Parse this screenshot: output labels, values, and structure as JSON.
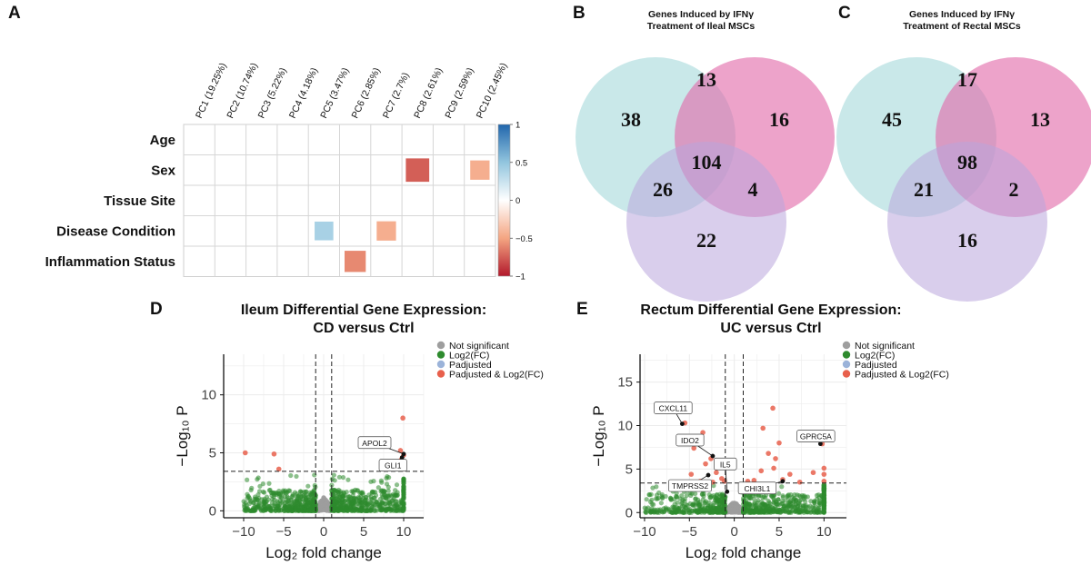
{
  "panels": {
    "A": "A",
    "B": "B",
    "C": "C",
    "D": "D",
    "E": "E"
  },
  "colors": {
    "venn_a": "#a8dadc",
    "venn_b": "#e26ba9",
    "venn_c": "#b9a6dc",
    "not_significant": "#9e9e9e",
    "log2fc": "#2e8b2e",
    "padjusted": "#9bb3d9",
    "padj_and_log2fc": "#e8604c",
    "heat_pos": "#2166ac",
    "heat_neg": "#b2182b"
  },
  "chart_data": [
    {
      "type": "heatmap",
      "panel": "A",
      "rows": [
        "Age",
        "Sex",
        "Tissue Site",
        "Disease Condition",
        "Inflammation Status"
      ],
      "columns": [
        "PC1 (19.25%)",
        "PC2 (10.74%)",
        "PC3 (5.22%)",
        "PC4 (4.18%)",
        "PC5 (3.47%)",
        "PC6 (2.85%)",
        "PC7 (2.7%)",
        "PC8 (2.61%)",
        "PC9 (2.59%)",
        "PC10 (2.45%)"
      ],
      "cells": [
        {
          "row": 1,
          "col": 7,
          "value": -0.75,
          "size": 0.75
        },
        {
          "row": 1,
          "col": 9,
          "value": -0.45,
          "size": 0.62
        },
        {
          "row": 3,
          "col": 4,
          "value": 0.4,
          "size": 0.6
        },
        {
          "row": 3,
          "col": 6,
          "value": -0.45,
          "size": 0.62
        },
        {
          "row": 4,
          "col": 5,
          "value": -0.6,
          "size": 0.68
        }
      ],
      "colorbar": {
        "range": [
          -1,
          1
        ],
        "ticks": [
          "1",
          "0.5",
          "0",
          "−0.5",
          "−1"
        ]
      }
    },
    {
      "type": "venn",
      "panel": "B",
      "title_lines": [
        "Genes Induced by IFNγ",
        "Treatment of Ileal MSCs"
      ],
      "regions": {
        "a_only": "38",
        "b_only": "16",
        "c_only": "22",
        "ab": "13",
        "ac": "26",
        "bc": "4",
        "abc": "104"
      }
    },
    {
      "type": "venn",
      "panel": "C",
      "title_lines": [
        "Genes Induced by IFNγ",
        "Treatment of Rectal MSCs"
      ],
      "regions": {
        "a_only": "45",
        "b_only": "13",
        "c_only": "16",
        "ab": "17",
        "ac": "21",
        "bc": "2",
        "abc": "98"
      }
    },
    {
      "type": "scatter",
      "panel": "D",
      "title_lines": [
        "Ileum Differential Gene Expression:",
        "CD versus Ctrl"
      ],
      "xlabel": "Log₂ fold change",
      "ylabel": "−Log₁₀ P",
      "xlim": [
        -12.5,
        12.5
      ],
      "ylim": [
        -0.6,
        13.5
      ],
      "xticks": [
        -10,
        -5,
        0,
        5,
        10
      ],
      "yticks": [
        0,
        5,
        10
      ],
      "fc_cutoff": 1,
      "p_cutoff": 3.4,
      "legend": [
        "Not significant",
        "Log2(FC)",
        "Padjusted",
        "Padjusted & Log2(FC)"
      ],
      "significant_points": [
        {
          "x": -9.8,
          "y": 5.0
        },
        {
          "x": -6.2,
          "y": 4.9
        },
        {
          "x": -5.6,
          "y": 3.6
        },
        {
          "x": 9.9,
          "y": 8.0
        },
        {
          "x": 9.6,
          "y": 5.2
        },
        {
          "x": 10.0,
          "y": 4.8
        },
        {
          "x": 9.7,
          "y": 4.4
        },
        {
          "x": 10.0,
          "y": 3.9
        },
        {
          "x": 9.9,
          "y": 3.6
        },
        {
          "x": 8.5,
          "y": 3.7
        }
      ],
      "gene_labels": [
        {
          "text": "APOL2",
          "x": 10.0,
          "y": 4.9
        },
        {
          "text": "GLI1",
          "x": 9.8,
          "y": 4.6
        }
      ]
    },
    {
      "type": "scatter",
      "panel": "E",
      "title_lines": [
        "Rectum Differential Gene Expression:",
        "UC versus Ctrl"
      ],
      "xlabel": "Log₂ fold change",
      "ylabel": "−Log₁₀ P",
      "xlim": [
        -10.5,
        12.5
      ],
      "ylim": [
        -0.6,
        18.2
      ],
      "xticks": [
        -10,
        -5,
        0,
        5,
        10
      ],
      "yticks": [
        0,
        5,
        10,
        15
      ],
      "fc_cutoff": 1,
      "p_cutoff": 3.4,
      "legend": [
        "Not significant",
        "Log2(FC)",
        "Padjusted",
        "Padjusted & Log2(FC)"
      ],
      "significant_points": [
        {
          "x": -5.5,
          "y": 10.3
        },
        {
          "x": -3.5,
          "y": 9.2
        },
        {
          "x": -4.2,
          "y": 8.3
        },
        {
          "x": -2.6,
          "y": 6.2
        },
        {
          "x": -4.5,
          "y": 7.4
        },
        {
          "x": -3.2,
          "y": 5.6
        },
        {
          "x": -2.0,
          "y": 4.6
        },
        {
          "x": -4.8,
          "y": 4.4
        },
        {
          "x": -1.4,
          "y": 3.9
        },
        {
          "x": -3.8,
          "y": 3.6
        },
        {
          "x": -2.4,
          "y": 3.5
        },
        {
          "x": -1.1,
          "y": 3.6
        },
        {
          "x": 4.3,
          "y": 12.0
        },
        {
          "x": 3.2,
          "y": 9.7
        },
        {
          "x": 5.0,
          "y": 8.0
        },
        {
          "x": 3.8,
          "y": 6.8
        },
        {
          "x": 4.6,
          "y": 6.2
        },
        {
          "x": 9.8,
          "y": 7.9
        },
        {
          "x": 4.4,
          "y": 5.1
        },
        {
          "x": 3.0,
          "y": 4.8
        },
        {
          "x": 6.2,
          "y": 4.4
        },
        {
          "x": 8.8,
          "y": 4.6
        },
        {
          "x": 10.0,
          "y": 5.1
        },
        {
          "x": 10.0,
          "y": 4.4
        },
        {
          "x": 5.4,
          "y": 3.8
        },
        {
          "x": 2.2,
          "y": 3.7
        },
        {
          "x": 10.0,
          "y": 3.6
        },
        {
          "x": 7.3,
          "y": 3.5
        },
        {
          "x": 1.5,
          "y": 3.6
        }
      ],
      "gene_labels": [
        {
          "text": "CXCL11",
          "x": -5.8,
          "y": 10.2
        },
        {
          "text": "IDO2",
          "x": -2.4,
          "y": 6.5
        },
        {
          "text": "TMPRSS2",
          "x": -2.9,
          "y": 4.3
        },
        {
          "text": "GPRC5A",
          "x": 9.6,
          "y": 7.9
        },
        {
          "text": "IL5",
          "x": -0.8,
          "y": 2.4
        },
        {
          "text": "CHI3L1",
          "x": 5.4,
          "y": 3.6
        }
      ]
    }
  ]
}
